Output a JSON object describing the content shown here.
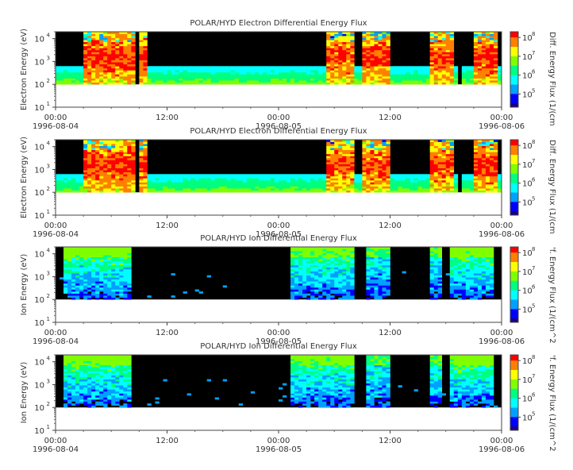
{
  "chart_data": [
    {
      "type": "heatmap",
      "title": "POLAR/HYD  Electron Differential Energy Flux",
      "ylabel": "Electron Energy (eV)",
      "colorbar_label": "Diff. Energy Flux (1/(cm",
      "yscale": "log",
      "ylim": [
        10,
        20000
      ],
      "yticks": [
        "10",
        "10",
        "10",
        "10"
      ],
      "ytick_exponents": [
        "1",
        "2",
        "3",
        "4"
      ],
      "xticks": [
        "00:00",
        "12:00",
        "00:00",
        "12:00",
        "00:00"
      ],
      "xdates": [
        "1996-08-04",
        "",
        "1996-08-05",
        "",
        "1996-08-06"
      ],
      "xlim": [
        "1996-08-04 00:00",
        "1996-08-06 00:00"
      ],
      "cticks": [
        "10",
        "10",
        "10",
        "10"
      ],
      "ctick_exponents": [
        "5",
        "6",
        "7",
        "8"
      ],
      "clim": [
        20000,
        200000000
      ],
      "species": "electron"
    },
    {
      "type": "heatmap",
      "title": "POLAR/HYD  Electron Differential Energy Flux",
      "ylabel": "Electron Energy (eV)",
      "colorbar_label": "Diff. Energy Flux (1/(cm",
      "yscale": "log",
      "ylim": [
        10,
        20000
      ],
      "yticks": [
        "10",
        "10",
        "10",
        "10"
      ],
      "ytick_exponents": [
        "1",
        "2",
        "3",
        "4"
      ],
      "xticks": [
        "00:00",
        "12:00",
        "00:00",
        "12:00",
        "00:00"
      ],
      "xdates": [
        "1996-08-04",
        "",
        "1996-08-05",
        "",
        "1996-08-06"
      ],
      "xlim": [
        "1996-08-04 00:00",
        "1996-08-06 00:00"
      ],
      "cticks": [
        "10",
        "10",
        "10",
        "10"
      ],
      "ctick_exponents": [
        "5",
        "6",
        "7",
        "8"
      ],
      "clim": [
        20000,
        200000000
      ],
      "species": "electron"
    },
    {
      "type": "heatmap",
      "title": "POLAR/HYD  Ion Differential Energy Flux",
      "ylabel": "Ion Energy (eV)",
      "colorbar_label": "'f. Energy Flux (1/(cm^2",
      "yscale": "log",
      "ylim": [
        10,
        20000
      ],
      "yticks": [
        "10",
        "10",
        "10",
        "10"
      ],
      "ytick_exponents": [
        "1",
        "2",
        "3",
        "4"
      ],
      "xticks": [
        "00:00",
        "12:00",
        "00:00",
        "12:00",
        "00:00"
      ],
      "xdates": [
        "1996-08-04",
        "",
        "1996-08-05",
        "",
        "1996-08-06"
      ],
      "xlim": [
        "1996-08-04 00:00",
        "1996-08-06 00:00"
      ],
      "cticks": [
        "10",
        "10",
        "10",
        "10"
      ],
      "ctick_exponents": [
        "5",
        "6",
        "7",
        "8"
      ],
      "clim": [
        20000,
        200000000
      ],
      "species": "ion"
    },
    {
      "type": "heatmap",
      "title": "POLAR/HYD  Ion Differential Energy Flux",
      "ylabel": "Ion Energy (eV)",
      "colorbar_label": "'f. Energy Flux (1/(cm^2",
      "yscale": "log",
      "ylim": [
        10,
        20000
      ],
      "yticks": [
        "10",
        "10",
        "10",
        "10"
      ],
      "ytick_exponents": [
        "1",
        "2",
        "3",
        "4"
      ],
      "xticks": [
        "00:00",
        "12:00",
        "00:00",
        "12:00",
        "00:00"
      ],
      "xdates": [
        "1996-08-04",
        "",
        "1996-08-05",
        "",
        "1996-08-06"
      ],
      "xlim": [
        "1996-08-04 00:00",
        "1996-08-06 00:00"
      ],
      "cticks": [
        "10",
        "10",
        "10",
        "10"
      ],
      "ctick_exponents": [
        "5",
        "6",
        "7",
        "8"
      ],
      "clim": [
        20000,
        200000000
      ],
      "species": "ion"
    }
  ],
  "colors": {
    "background": "#000000",
    "colormap": [
      "#1a0080",
      "#0000ff",
      "#00a0ff",
      "#00ffff",
      "#00ff80",
      "#80ff00",
      "#ffff00",
      "#ff8000",
      "#ff0000"
    ]
  }
}
